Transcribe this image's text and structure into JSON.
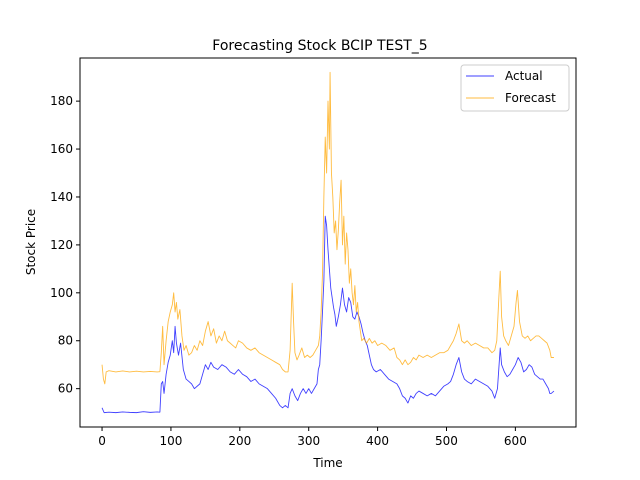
{
  "chart_data": {
    "type": "line",
    "title": "Forecasting Stock BCIP TEST_5",
    "xlabel": "Time",
    "ylabel": "Stock Price",
    "xlim": [
      -32,
      688
    ],
    "ylim": [
      44,
      198
    ],
    "xticks": [
      0,
      100,
      200,
      300,
      400,
      500,
      600
    ],
    "yticks": [
      60,
      80,
      100,
      120,
      140,
      160,
      180
    ],
    "grid": false,
    "legend_position": "top-right",
    "colors": {
      "actual": "#0000ff",
      "forecast": "#ffa500"
    },
    "series": [
      {
        "name": "Actual",
        "color": "#0000ff",
        "points": [
          [
            0,
            52
          ],
          [
            3,
            50
          ],
          [
            10,
            50.2
          ],
          [
            20,
            50
          ],
          [
            30,
            50.3
          ],
          [
            40,
            50.1
          ],
          [
            50,
            50
          ],
          [
            60,
            50.4
          ],
          [
            70,
            50.1
          ],
          [
            80,
            50.3
          ],
          [
            84,
            50.2
          ],
          [
            86,
            62
          ],
          [
            88,
            63
          ],
          [
            90,
            58
          ],
          [
            93,
            66
          ],
          [
            96,
            71
          ],
          [
            99,
            74
          ],
          [
            102,
            80
          ],
          [
            104,
            75
          ],
          [
            106,
            86
          ],
          [
            108,
            79
          ],
          [
            111,
            74
          ],
          [
            114,
            79
          ],
          [
            118,
            68
          ],
          [
            122,
            64
          ],
          [
            126,
            63
          ],
          [
            130,
            62
          ],
          [
            134,
            60
          ],
          [
            138,
            61
          ],
          [
            142,
            62
          ],
          [
            146,
            66
          ],
          [
            150,
            70
          ],
          [
            154,
            68
          ],
          [
            158,
            71
          ],
          [
            162,
            69
          ],
          [
            168,
            68
          ],
          [
            174,
            70
          ],
          [
            180,
            69
          ],
          [
            186,
            67
          ],
          [
            192,
            66
          ],
          [
            198,
            68
          ],
          [
            204,
            66
          ],
          [
            210,
            65
          ],
          [
            216,
            63
          ],
          [
            222,
            64
          ],
          [
            228,
            62
          ],
          [
            234,
            61
          ],
          [
            240,
            60
          ],
          [
            246,
            58
          ],
          [
            252,
            56
          ],
          [
            258,
            53
          ],
          [
            262,
            52
          ],
          [
            266,
            53
          ],
          [
            270,
            52
          ],
          [
            273,
            58
          ],
          [
            276,
            60
          ],
          [
            280,
            57
          ],
          [
            284,
            55
          ],
          [
            288,
            58
          ],
          [
            292,
            60
          ],
          [
            296,
            58
          ],
          [
            300,
            60
          ],
          [
            304,
            58
          ],
          [
            308,
            60
          ],
          [
            312,
            62
          ],
          [
            314,
            68
          ],
          [
            316,
            70
          ],
          [
            318,
            80
          ],
          [
            320,
            92
          ],
          [
            322,
            105
          ],
          [
            324,
            132
          ],
          [
            326,
            128
          ],
          [
            328,
            118
          ],
          [
            330,
            110
          ],
          [
            332,
            102
          ],
          [
            334,
            98
          ],
          [
            336,
            94
          ],
          [
            338,
            91
          ],
          [
            340,
            86
          ],
          [
            343,
            90
          ],
          [
            346,
            95
          ],
          [
            349,
            102
          ],
          [
            352,
            95
          ],
          [
            355,
            92
          ],
          [
            358,
            98
          ],
          [
            361,
            96
          ],
          [
            364,
            90
          ],
          [
            367,
            89
          ],
          [
            370,
            92
          ],
          [
            373,
            90
          ],
          [
            376,
            87
          ],
          [
            379,
            83
          ],
          [
            382,
            80
          ],
          [
            385,
            78
          ],
          [
            388,
            74
          ],
          [
            391,
            70
          ],
          [
            394,
            68
          ],
          [
            398,
            67
          ],
          [
            404,
            68
          ],
          [
            410,
            66
          ],
          [
            416,
            64
          ],
          [
            422,
            63
          ],
          [
            428,
            62
          ],
          [
            432,
            60
          ],
          [
            436,
            57
          ],
          [
            440,
            56
          ],
          [
            444,
            54
          ],
          [
            448,
            57
          ],
          [
            452,
            56
          ],
          [
            456,
            58
          ],
          [
            460,
            59
          ],
          [
            466,
            58
          ],
          [
            472,
            57
          ],
          [
            478,
            58
          ],
          [
            484,
            57
          ],
          [
            490,
            59
          ],
          [
            496,
            61
          ],
          [
            502,
            62
          ],
          [
            506,
            63
          ],
          [
            510,
            66
          ],
          [
            514,
            70
          ],
          [
            518,
            73
          ],
          [
            522,
            67
          ],
          [
            526,
            64
          ],
          [
            530,
            63
          ],
          [
            536,
            62
          ],
          [
            542,
            64
          ],
          [
            548,
            63
          ],
          [
            554,
            62
          ],
          [
            560,
            61
          ],
          [
            566,
            59
          ],
          [
            570,
            56
          ],
          [
            574,
            60
          ],
          [
            578,
            77
          ],
          [
            580,
            70
          ],
          [
            584,
            67
          ],
          [
            588,
            65
          ],
          [
            592,
            66
          ],
          [
            596,
            68
          ],
          [
            600,
            70
          ],
          [
            604,
            73
          ],
          [
            608,
            71
          ],
          [
            612,
            67
          ],
          [
            616,
            68
          ],
          [
            620,
            70
          ],
          [
            624,
            69
          ],
          [
            628,
            66
          ],
          [
            632,
            65
          ],
          [
            636,
            64
          ],
          [
            640,
            64
          ],
          [
            644,
            62
          ],
          [
            648,
            60
          ],
          [
            650,
            58
          ],
          [
            652,
            58
          ],
          [
            656,
            59
          ]
        ]
      },
      {
        "name": "Forecast",
        "color": "#ffa500",
        "points": [
          [
            0,
            70
          ],
          [
            2,
            64
          ],
          [
            4,
            62
          ],
          [
            6,
            67
          ],
          [
            10,
            67.5
          ],
          [
            20,
            67
          ],
          [
            30,
            67.4
          ],
          [
            40,
            67
          ],
          [
            50,
            67.3
          ],
          [
            60,
            67
          ],
          [
            70,
            67.2
          ],
          [
            80,
            67
          ],
          [
            84,
            67.1
          ],
          [
            86,
            75
          ],
          [
            88,
            86
          ],
          [
            90,
            70
          ],
          [
            93,
            80
          ],
          [
            96,
            88
          ],
          [
            99,
            92
          ],
          [
            102,
            95
          ],
          [
            104,
            100
          ],
          [
            106,
            92
          ],
          [
            108,
            96
          ],
          [
            110,
            89
          ],
          [
            113,
            93
          ],
          [
            116,
            82
          ],
          [
            119,
            76
          ],
          [
            122,
            78
          ],
          [
            126,
            74
          ],
          [
            130,
            75
          ],
          [
            134,
            78
          ],
          [
            138,
            76
          ],
          [
            142,
            80
          ],
          [
            146,
            78
          ],
          [
            150,
            84
          ],
          [
            154,
            88
          ],
          [
            158,
            82
          ],
          [
            162,
            85
          ],
          [
            166,
            79
          ],
          [
            170,
            82
          ],
          [
            174,
            80
          ],
          [
            178,
            84
          ],
          [
            182,
            80
          ],
          [
            186,
            79
          ],
          [
            190,
            78
          ],
          [
            194,
            77
          ],
          [
            198,
            80
          ],
          [
            204,
            79
          ],
          [
            210,
            77
          ],
          [
            216,
            76
          ],
          [
            222,
            77
          ],
          [
            228,
            75
          ],
          [
            234,
            74
          ],
          [
            240,
            73
          ],
          [
            246,
            72
          ],
          [
            252,
            71
          ],
          [
            258,
            70
          ],
          [
            262,
            68
          ],
          [
            266,
            67
          ],
          [
            270,
            67
          ],
          [
            273,
            76
          ],
          [
            276,
            104
          ],
          [
            278,
            88
          ],
          [
            280,
            75
          ],
          [
            283,
            72
          ],
          [
            286,
            74
          ],
          [
            290,
            77
          ],
          [
            294,
            73
          ],
          [
            298,
            74
          ],
          [
            302,
            73
          ],
          [
            306,
            74
          ],
          [
            310,
            76
          ],
          [
            314,
            78
          ],
          [
            316,
            82
          ],
          [
            318,
            92
          ],
          [
            320,
            108
          ],
          [
            322,
            140
          ],
          [
            324,
            165
          ],
          [
            326,
            150
          ],
          [
            328,
            180
          ],
          [
            330,
            160
          ],
          [
            331,
            192
          ],
          [
            333,
            150
          ],
          [
            335,
            140
          ],
          [
            337,
            125
          ],
          [
            339,
            130
          ],
          [
            341,
            118
          ],
          [
            343,
            126
          ],
          [
            345,
            138
          ],
          [
            347,
            147
          ],
          [
            349,
            120
          ],
          [
            351,
            132
          ],
          [
            353,
            112
          ],
          [
            355,
            125
          ],
          [
            357,
            118
          ],
          [
            359,
            104
          ],
          [
            361,
            110
          ],
          [
            363,
            100
          ],
          [
            365,
            95
          ],
          [
            367,
            103
          ],
          [
            369,
            92
          ],
          [
            371,
            96
          ],
          [
            373,
            88
          ],
          [
            375,
            84
          ],
          [
            377,
            80
          ],
          [
            380,
            81
          ],
          [
            384,
            79
          ],
          [
            388,
            81
          ],
          [
            392,
            79
          ],
          [
            396,
            80
          ],
          [
            400,
            78
          ],
          [
            406,
            79
          ],
          [
            412,
            78
          ],
          [
            418,
            76
          ],
          [
            424,
            77
          ],
          [
            428,
            73
          ],
          [
            432,
            72
          ],
          [
            436,
            70
          ],
          [
            440,
            72
          ],
          [
            444,
            70
          ],
          [
            448,
            71
          ],
          [
            452,
            73
          ],
          [
            456,
            72
          ],
          [
            460,
            74
          ],
          [
            466,
            73
          ],
          [
            472,
            74
          ],
          [
            478,
            73
          ],
          [
            484,
            74
          ],
          [
            490,
            75
          ],
          [
            496,
            75
          ],
          [
            502,
            76
          ],
          [
            506,
            78
          ],
          [
            510,
            80
          ],
          [
            514,
            83
          ],
          [
            518,
            87
          ],
          [
            522,
            80
          ],
          [
            526,
            79
          ],
          [
            530,
            80
          ],
          [
            536,
            78
          ],
          [
            542,
            79
          ],
          [
            548,
            78
          ],
          [
            554,
            77
          ],
          [
            560,
            77
          ],
          [
            566,
            75
          ],
          [
            570,
            76
          ],
          [
            573,
            80
          ],
          [
            576,
            98
          ],
          [
            578,
            109
          ],
          [
            580,
            90
          ],
          [
            583,
            82
          ],
          [
            586,
            80
          ],
          [
            590,
            78
          ],
          [
            594,
            82
          ],
          [
            598,
            86
          ],
          [
            601,
            96
          ],
          [
            603,
            101
          ],
          [
            606,
            88
          ],
          [
            610,
            82
          ],
          [
            614,
            81
          ],
          [
            618,
            82
          ],
          [
            622,
            80
          ],
          [
            626,
            81
          ],
          [
            630,
            82
          ],
          [
            634,
            82
          ],
          [
            638,
            81
          ],
          [
            642,
            80
          ],
          [
            646,
            79
          ],
          [
            650,
            76
          ],
          [
            652,
            73
          ],
          [
            656,
            73
          ]
        ]
      }
    ]
  }
}
